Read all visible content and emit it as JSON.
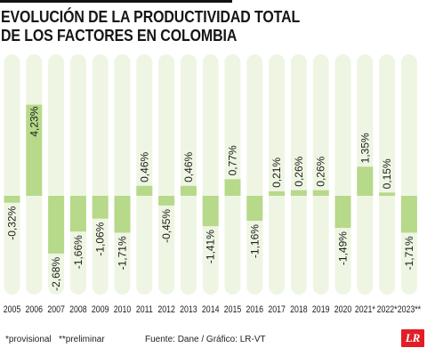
{
  "header": {
    "title_line1": "EVOLUCIÓN DE LA PRODUCTIVIDAD TOTAL",
    "title_line2": "DE LOS FACTORES EN COLOMBIA"
  },
  "footer": {
    "note_provisional": "*provisional",
    "note_preliminar": "**preliminar",
    "source": "Fuente: Dane / Gráfico: LR-VT",
    "logo": "LR"
  },
  "colors": {
    "bar": "#b7d98a",
    "track": "#eef6e3",
    "logo": "#e11d26",
    "title": "#151515"
  },
  "chart_data": {
    "type": "bar",
    "categories": [
      "2005",
      "2006",
      "2007",
      "2008",
      "2009",
      "2010",
      "2011",
      "2012",
      "2013",
      "2014",
      "2015",
      "2016",
      "2017",
      "2018",
      "2019",
      "2020",
      "2021*",
      "2022*",
      "2023**"
    ],
    "values": [
      -0.32,
      4.23,
      -2.68,
      -1.66,
      -1.06,
      -1.71,
      0.46,
      -0.45,
      0.46,
      -1.41,
      0.77,
      -1.16,
      0.21,
      0.26,
      0.26,
      -1.49,
      1.35,
      0.15,
      -1.71
    ],
    "labels": [
      "-0,32%",
      "4,23%",
      "-2,68%",
      "-1,66%",
      "-1,06%",
      "-1,71%",
      "0,46%",
      "-0,45%",
      "0,46%",
      "-1,41%",
      "0,77%",
      "-1,16%",
      "0,21%",
      "0,26%",
      "0,26%",
      "-1,49%",
      "1,35%",
      "0,15%",
      "-1,71%"
    ],
    "title": "EVOLUCIÓN DE LA PRODUCTIVIDAD TOTAL DE LOS FACTORES EN COLOMBIA",
    "xlabel": "",
    "ylabel": "",
    "grid": false
  }
}
